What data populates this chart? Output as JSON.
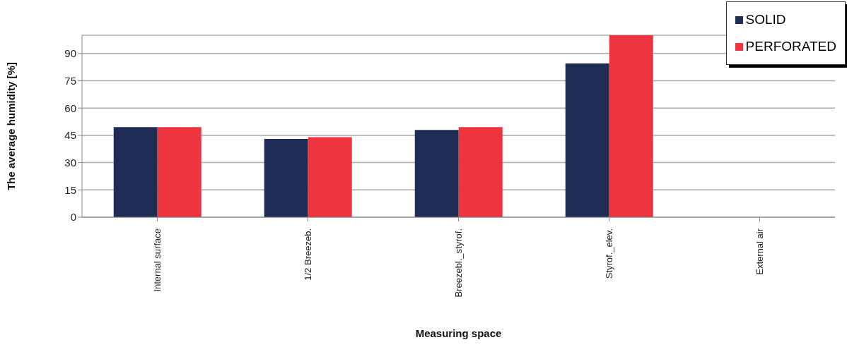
{
  "chart_data": {
    "type": "bar",
    "xlabel": "Measuring space",
    "ylabel": "The average humidity [%]",
    "categories": [
      "Internal surface",
      "1/2 Breezeb.",
      "Breezebl._styrof.",
      "Styrof._elev.",
      "External air"
    ],
    "series": [
      {
        "name": "SOLID",
        "color": "#1f2d56",
        "values": [
          49.5,
          43,
          48,
          84.5,
          null
        ]
      },
      {
        "name": "PERFORATED",
        "color": "#ee343f",
        "values": [
          49.5,
          44,
          49.5,
          100,
          null
        ]
      }
    ],
    "ylim": [
      0,
      100
    ],
    "yticks": [
      0,
      15,
      30,
      45,
      60,
      75,
      90
    ],
    "grid": "y",
    "legend": "top right"
  }
}
